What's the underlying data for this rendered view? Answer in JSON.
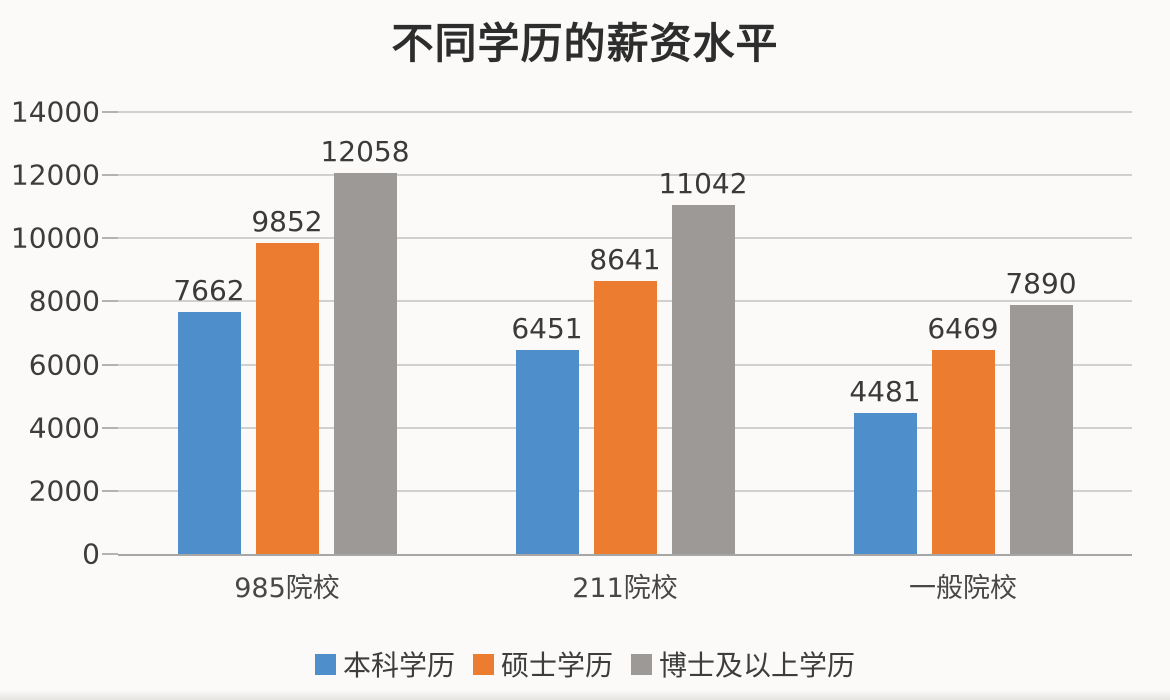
{
  "page": {
    "background": "#fbfaf8"
  },
  "chart_data": {
    "type": "bar",
    "title": "不同学历的薪资水平",
    "categories": [
      "985院校",
      "211院校",
      "一般院校"
    ],
    "series": [
      {
        "name": "本科学历",
        "color": "#4D8ECB",
        "values": [
          7662,
          6451,
          4481
        ]
      },
      {
        "name": "硕士学历",
        "color": "#EC7C2F",
        "values": [
          9852,
          8641,
          6469
        ]
      },
      {
        "name": "博士及以上学历",
        "color": "#9D9997",
        "values": [
          12058,
          11042,
          7890
        ]
      }
    ],
    "xlabel": "",
    "ylabel": "",
    "ylim": [
      0,
      14000
    ],
    "yticks": [
      0,
      2000,
      4000,
      6000,
      8000,
      10000,
      12000,
      14000
    ],
    "grid": true,
    "data_labels": true,
    "legend_position": "bottom",
    "axis_color": "#a6a6a6",
    "gridline_color": "#d0d0d0",
    "text_color": "#3a3a3a"
  }
}
